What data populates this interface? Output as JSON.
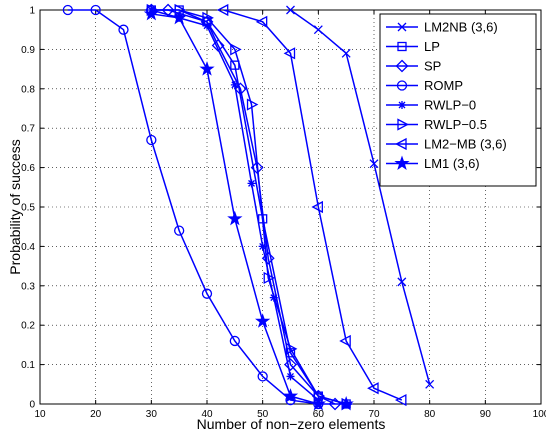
{
  "chart_data": {
    "type": "line",
    "title": "",
    "xlabel": "Number of non−zero elements",
    "ylabel": "Probability of success",
    "xlim": [
      10,
      100
    ],
    "ylim": [
      0,
      1
    ],
    "xticks": [
      10,
      20,
      30,
      40,
      50,
      60,
      70,
      80,
      90,
      100
    ],
    "yticks": [
      0,
      0.1,
      0.2,
      0.3,
      0.4,
      0.5,
      0.6,
      0.7,
      0.8,
      0.9,
      1
    ],
    "grid": true,
    "legend_position": "top-right",
    "line_color": "#0000ff",
    "series": [
      {
        "name": "LM2NB (3,6)",
        "marker": "x",
        "x": [
          55,
          60,
          65,
          70,
          75,
          80
        ],
        "y": [
          1.0,
          0.95,
          0.89,
          0.61,
          0.31,
          0.05
        ]
      },
      {
        "name": "LP",
        "marker": "square",
        "x": [
          30,
          35,
          40,
          45,
          50,
          55,
          60,
          65
        ],
        "y": [
          1.0,
          1.0,
          0.97,
          0.86,
          0.47,
          0.13,
          0.02,
          0.0
        ]
      },
      {
        "name": "SP",
        "marker": "diamond",
        "x": [
          30,
          33,
          40,
          42,
          46,
          49,
          51,
          55,
          60,
          63
        ],
        "y": [
          1.0,
          1.0,
          0.97,
          0.91,
          0.8,
          0.6,
          0.37,
          0.1,
          0.02,
          0.0
        ]
      },
      {
        "name": "ROMP",
        "marker": "circle",
        "x": [
          15,
          20,
          25,
          30,
          35,
          40,
          45,
          50,
          55,
          60
        ],
        "y": [
          1.0,
          1.0,
          0.95,
          0.67,
          0.44,
          0.28,
          0.16,
          0.07,
          0.01,
          0.0
        ]
      },
      {
        "name": "RWLP−0",
        "marker": "asterisk",
        "x": [
          30,
          35,
          40,
          45,
          48,
          50,
          52,
          55,
          60
        ],
        "y": [
          1.0,
          0.98,
          0.96,
          0.81,
          0.56,
          0.4,
          0.27,
          0.07,
          0.01
        ]
      },
      {
        "name": "RWLP−0.5",
        "marker": "triangle-right",
        "x": [
          30,
          35,
          40,
          45,
          48,
          51,
          55,
          60,
          65
        ],
        "y": [
          1.0,
          1.0,
          0.98,
          0.9,
          0.76,
          0.32,
          0.14,
          0.02,
          0.0
        ]
      },
      {
        "name": "LM2−MB (3,6)",
        "marker": "triangle-left",
        "x": [
          43,
          50,
          55,
          60,
          65,
          70,
          75
        ],
        "y": [
          1.0,
          0.97,
          0.89,
          0.5,
          0.16,
          0.04,
          0.01
        ]
      },
      {
        "name": "LM1 (3,6)",
        "marker": "star",
        "x": [
          30,
          35,
          40,
          45,
          50,
          55,
          60,
          65
        ],
        "y": [
          0.99,
          0.98,
          0.85,
          0.47,
          0.21,
          0.02,
          0.0,
          0.0
        ]
      }
    ]
  }
}
